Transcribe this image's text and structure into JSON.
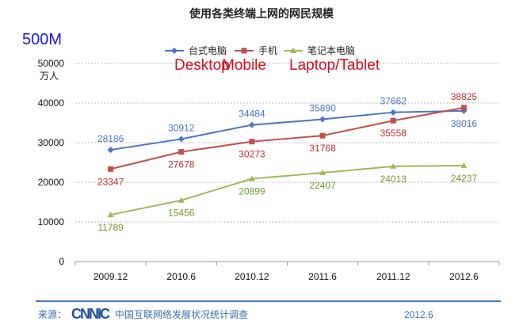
{
  "chart_data": {
    "type": "line",
    "title": "使用各类终端上网的网民规模",
    "annotation_size": "500M",
    "ylabel": "万人",
    "ylim": [
      0,
      50000
    ],
    "yticks": [
      0,
      10000,
      20000,
      30000,
      40000,
      50000
    ],
    "grid": true,
    "legend_position": "top",
    "categories": [
      "2009.12",
      "2010.6",
      "2010.12",
      "2011.6",
      "2011.12",
      "2012.6"
    ],
    "series": [
      {
        "name": "台式电脑",
        "translation": "Desktop",
        "color": "#4a74c4",
        "label_color": "#4a74c4",
        "marker": "diamond",
        "values": [
          28186,
          30912,
          34484,
          35890,
          37662,
          38016
        ]
      },
      {
        "name": "手机",
        "translation": "Mobile",
        "color": "#c0504d",
        "label_color": "#c0302d",
        "marker": "square",
        "values": [
          23347,
          27678,
          30273,
          31768,
          35558,
          38825
        ]
      },
      {
        "name": "笔记本电脑",
        "translation": "Laptop/Tablet",
        "color": "#9bbb59",
        "label_color": "#6f9a30",
        "marker": "triangle",
        "values": [
          11789,
          15456,
          20899,
          22407,
          24013,
          24237
        ]
      }
    ]
  },
  "footer": {
    "source_label": "来源：",
    "logo_text": "CNNIC",
    "source_name": "中国互联网络发展状况统计调查",
    "date": "2012.6"
  }
}
